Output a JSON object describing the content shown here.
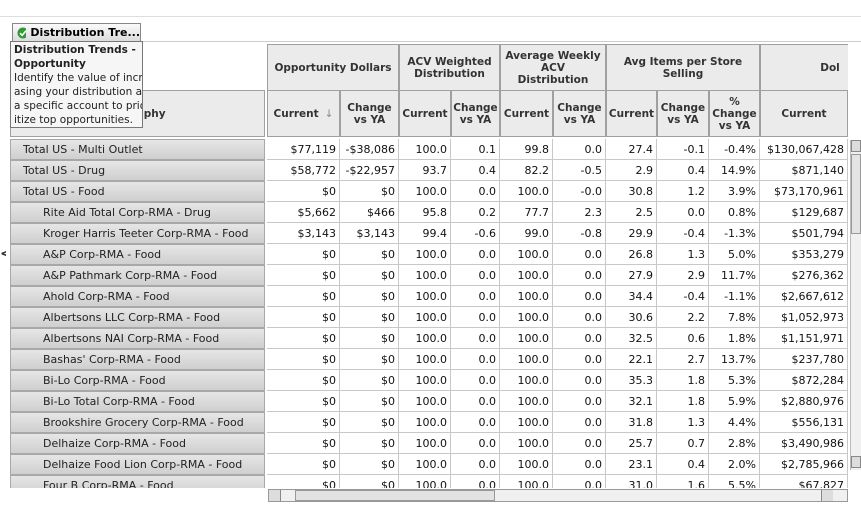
{
  "tab": {
    "label": "Distribution Tre..."
  },
  "tooltip": {
    "title": "Distribution Trends - Opportunity",
    "lines": [
      "Identify the value of incre",
      "asing your distribution at",
      "a specific account to prior",
      "itize top opportunities."
    ]
  },
  "table": {
    "row_header": "Geography",
    "groups": [
      {
        "label": "Opportunity Dollars",
        "span": 2
      },
      {
        "label": "ACV Weighted Distribution",
        "span": 2
      },
      {
        "label": "Average Weekly ACV Distribution",
        "span": 2
      },
      {
        "label": "Avg Items per Store Selling",
        "span": 3
      },
      {
        "label": "Dol",
        "span": 1
      }
    ],
    "columns": [
      "Current",
      "Change vs YA",
      "Current",
      "Change vs YA",
      "Current",
      "Change vs YA",
      "Current",
      "Change vs YA",
      "% Change vs YA",
      "Current"
    ],
    "sort_marker": "↓",
    "rows": [
      {
        "label": "Total US - Multi Outlet",
        "level": 0,
        "cells": [
          "$77,119",
          "-$38,086",
          "100.0",
          "0.1",
          "99.8",
          "0.0",
          "27.4",
          "-0.1",
          "-0.4%",
          "$130,067,428"
        ]
      },
      {
        "label": "Total US - Drug",
        "level": 0,
        "cells": [
          "$58,772",
          "-$22,957",
          "93.7",
          "0.4",
          "82.2",
          "-0.5",
          "2.9",
          "0.4",
          "14.9%",
          "$871,140"
        ]
      },
      {
        "label": "Total US - Food",
        "level": 0,
        "cells": [
          "$0",
          "$0",
          "100.0",
          "0.0",
          "100.0",
          "-0.0",
          "30.8",
          "1.2",
          "3.9%",
          "$73,170,961"
        ]
      },
      {
        "label": "Rite Aid Total Corp-RMA - Drug",
        "level": 1,
        "cells": [
          "$5,662",
          "$466",
          "95.8",
          "0.2",
          "77.7",
          "2.3",
          "2.5",
          "0.0",
          "0.8%",
          "$129,687"
        ]
      },
      {
        "label": "Kroger Harris Teeter Corp-RMA - Food",
        "level": 1,
        "cells": [
          "$3,143",
          "$3,143",
          "99.4",
          "-0.6",
          "99.0",
          "-0.8",
          "29.9",
          "-0.4",
          "-1.3%",
          "$501,794"
        ]
      },
      {
        "label": "A&P Corp-RMA - Food",
        "level": 1,
        "cells": [
          "$0",
          "$0",
          "100.0",
          "0.0",
          "100.0",
          "0.0",
          "26.8",
          "1.3",
          "5.0%",
          "$353,279"
        ]
      },
      {
        "label": "A&P Pathmark Corp-RMA - Food",
        "level": 1,
        "cells": [
          "$0",
          "$0",
          "100.0",
          "0.0",
          "100.0",
          "0.0",
          "27.9",
          "2.9",
          "11.7%",
          "$276,362"
        ]
      },
      {
        "label": "Ahold Corp-RMA - Food",
        "level": 1,
        "cells": [
          "$0",
          "$0",
          "100.0",
          "0.0",
          "100.0",
          "0.0",
          "34.4",
          "-0.4",
          "-1.1%",
          "$2,667,612"
        ]
      },
      {
        "label": "Albertsons LLC Corp-RMA - Food",
        "level": 1,
        "cells": [
          "$0",
          "$0",
          "100.0",
          "0.0",
          "100.0",
          "0.0",
          "30.6",
          "2.2",
          "7.8%",
          "$1,052,973"
        ]
      },
      {
        "label": "Albertsons NAI Corp-RMA - Food",
        "level": 1,
        "cells": [
          "$0",
          "$0",
          "100.0",
          "0.0",
          "100.0",
          "0.0",
          "32.5",
          "0.6",
          "1.8%",
          "$1,151,971"
        ]
      },
      {
        "label": "Bashas' Corp-RMA - Food",
        "level": 1,
        "cells": [
          "$0",
          "$0",
          "100.0",
          "0.0",
          "100.0",
          "0.0",
          "22.1",
          "2.7",
          "13.7%",
          "$237,780"
        ]
      },
      {
        "label": "Bi-Lo Corp-RMA - Food",
        "level": 1,
        "cells": [
          "$0",
          "$0",
          "100.0",
          "0.0",
          "100.0",
          "0.0",
          "35.3",
          "1.8",
          "5.3%",
          "$872,284"
        ]
      },
      {
        "label": "Bi-Lo Total Corp-RMA - Food",
        "level": 1,
        "cells": [
          "$0",
          "$0",
          "100.0",
          "0.0",
          "100.0",
          "0.0",
          "32.1",
          "1.8",
          "5.9%",
          "$2,880,976"
        ]
      },
      {
        "label": "Brookshire Grocery Corp-RMA - Food",
        "level": 1,
        "cells": [
          "$0",
          "$0",
          "100.0",
          "0.0",
          "100.0",
          "0.0",
          "31.8",
          "1.3",
          "4.4%",
          "$556,131"
        ]
      },
      {
        "label": "Delhaize Corp-RMA - Food",
        "level": 1,
        "cells": [
          "$0",
          "$0",
          "100.0",
          "0.0",
          "100.0",
          "0.0",
          "25.7",
          "0.7",
          "2.8%",
          "$3,490,986"
        ]
      },
      {
        "label": "Delhaize Food Lion Corp-RMA - Food",
        "level": 1,
        "cells": [
          "$0",
          "$0",
          "100.0",
          "0.0",
          "100.0",
          "0.0",
          "23.1",
          "0.4",
          "2.0%",
          "$2,785,966"
        ]
      },
      {
        "label": "Four B Corp-RMA - Food",
        "level": 1,
        "cells": [
          "$0",
          "$0",
          "100.0",
          "0.0",
          "100.0",
          "0.0",
          "31.0",
          "1.6",
          "5.5%",
          "$67,827"
        ]
      }
    ]
  }
}
